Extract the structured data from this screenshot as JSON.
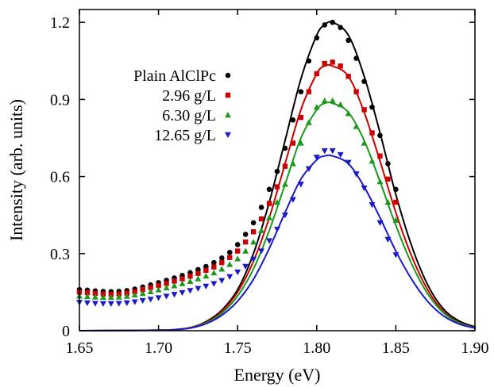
{
  "chart_data": {
    "type": "scatter",
    "title": "",
    "xlabel": "Energy (eV)",
    "ylabel": "Intensity (arb. units)",
    "xlim": [
      1.65,
      1.9
    ],
    "ylim": [
      0,
      1.25
    ],
    "x_ticks": [
      1.65,
      1.7,
      1.75,
      1.8,
      1.85,
      1.9
    ],
    "x_tick_labels": [
      "1.65",
      "1.70",
      "1.75",
      "1.80",
      "1.85",
      "1.90"
    ],
    "y_ticks": [
      0,
      0.3,
      0.6,
      0.9,
      1.2
    ],
    "y_tick_labels": [
      "0",
      "0.3",
      "0.6",
      "0.9",
      "1.2"
    ],
    "grid": false,
    "legend_position": "upper-left",
    "series": [
      {
        "name": "Plain AlClPc",
        "marker": "circle",
        "color": "#000000",
        "points": [
          [
            1.65,
            0.16
          ],
          [
            1.655,
            0.158
          ],
          [
            1.66,
            0.155
          ],
          [
            1.665,
            0.153
          ],
          [
            1.67,
            0.152
          ],
          [
            1.675,
            0.153
          ],
          [
            1.68,
            0.156
          ],
          [
            1.685,
            0.162
          ],
          [
            1.69,
            0.17
          ],
          [
            1.695,
            0.178
          ],
          [
            1.7,
            0.187
          ],
          [
            1.705,
            0.196
          ],
          [
            1.71,
            0.205
          ],
          [
            1.715,
            0.215
          ],
          [
            1.72,
            0.226
          ],
          [
            1.725,
            0.238
          ],
          [
            1.73,
            0.25
          ],
          [
            1.735,
            0.265
          ],
          [
            1.74,
            0.283
          ],
          [
            1.745,
            0.305
          ],
          [
            1.75,
            0.335
          ],
          [
            1.755,
            0.375
          ],
          [
            1.76,
            0.42
          ],
          [
            1.765,
            0.48
          ],
          [
            1.77,
            0.55
          ],
          [
            1.775,
            0.62
          ],
          [
            1.78,
            0.71
          ],
          [
            1.785,
            0.82
          ],
          [
            1.79,
            0.93
          ],
          [
            1.795,
            1.05
          ],
          [
            1.8,
            1.14
          ],
          [
            1.805,
            1.19
          ],
          [
            1.81,
            1.2
          ],
          [
            1.815,
            1.18
          ],
          [
            1.82,
            1.13
          ],
          [
            1.825,
            1.06
          ],
          [
            1.83,
            0.97
          ],
          [
            1.835,
            0.87
          ],
          [
            1.84,
            0.76
          ],
          [
            1.845,
            0.65
          ],
          [
            1.85,
            0.55
          ]
        ],
        "fit": [
          [
            1.65,
            0.0
          ],
          [
            1.7,
            0.002
          ],
          [
            1.71,
            0.004
          ],
          [
            1.72,
            0.012
          ],
          [
            1.73,
            0.035
          ],
          [
            1.74,
            0.08
          ],
          [
            1.75,
            0.16
          ],
          [
            1.76,
            0.3
          ],
          [
            1.77,
            0.5
          ],
          [
            1.78,
            0.74
          ],
          [
            1.79,
            0.98
          ],
          [
            1.8,
            1.15
          ],
          [
            1.805,
            1.19
          ],
          [
            1.81,
            1.2
          ],
          [
            1.82,
            1.15
          ],
          [
            1.83,
            0.99
          ],
          [
            1.84,
            0.77
          ],
          [
            1.85,
            0.53
          ],
          [
            1.86,
            0.33
          ],
          [
            1.87,
            0.18
          ],
          [
            1.88,
            0.085
          ],
          [
            1.89,
            0.038
          ],
          [
            1.9,
            0.015
          ]
        ]
      },
      {
        "name": "2.96 g/L",
        "marker": "square",
        "color": "#cc0000",
        "points": [
          [
            1.65,
            0.15
          ],
          [
            1.655,
            0.148
          ],
          [
            1.66,
            0.145
          ],
          [
            1.665,
            0.143
          ],
          [
            1.67,
            0.142
          ],
          [
            1.675,
            0.143
          ],
          [
            1.68,
            0.146
          ],
          [
            1.685,
            0.152
          ],
          [
            1.69,
            0.16
          ],
          [
            1.695,
            0.168
          ],
          [
            1.7,
            0.176
          ],
          [
            1.705,
            0.184
          ],
          [
            1.71,
            0.193
          ],
          [
            1.715,
            0.202
          ],
          [
            1.72,
            0.212
          ],
          [
            1.725,
            0.223
          ],
          [
            1.73,
            0.235
          ],
          [
            1.735,
            0.248
          ],
          [
            1.74,
            0.265
          ],
          [
            1.745,
            0.285
          ],
          [
            1.75,
            0.31
          ],
          [
            1.755,
            0.345
          ],
          [
            1.76,
            0.385
          ],
          [
            1.765,
            0.435
          ],
          [
            1.77,
            0.495
          ],
          [
            1.775,
            0.56
          ],
          [
            1.78,
            0.64
          ],
          [
            1.785,
            0.73
          ],
          [
            1.79,
            0.83
          ],
          [
            1.795,
            0.93
          ],
          [
            1.8,
            1.0
          ],
          [
            1.805,
            1.04
          ],
          [
            1.81,
            1.045
          ],
          [
            1.815,
            1.03
          ],
          [
            1.82,
            0.99
          ],
          [
            1.825,
            0.93
          ],
          [
            1.83,
            0.86
          ],
          [
            1.835,
            0.77
          ],
          [
            1.84,
            0.68
          ],
          [
            1.845,
            0.59
          ],
          [
            1.85,
            0.5
          ]
        ],
        "fit": [
          [
            1.65,
            0.0
          ],
          [
            1.7,
            0.002
          ],
          [
            1.71,
            0.004
          ],
          [
            1.72,
            0.012
          ],
          [
            1.73,
            0.032
          ],
          [
            1.74,
            0.075
          ],
          [
            1.75,
            0.15
          ],
          [
            1.76,
            0.27
          ],
          [
            1.77,
            0.44
          ],
          [
            1.78,
            0.65
          ],
          [
            1.79,
            0.86
          ],
          [
            1.8,
            1.0
          ],
          [
            1.805,
            1.03
          ],
          [
            1.81,
            1.03
          ],
          [
            1.82,
            0.99
          ],
          [
            1.83,
            0.85
          ],
          [
            1.84,
            0.66
          ],
          [
            1.85,
            0.46
          ],
          [
            1.86,
            0.29
          ],
          [
            1.87,
            0.16
          ],
          [
            1.88,
            0.075
          ],
          [
            1.89,
            0.032
          ],
          [
            1.9,
            0.012
          ]
        ]
      },
      {
        "name": "6.30 g/L",
        "marker": "triangle-up",
        "color": "#1a9a1a",
        "points": [
          [
            1.65,
            0.135
          ],
          [
            1.655,
            0.133
          ],
          [
            1.66,
            0.131
          ],
          [
            1.665,
            0.13
          ],
          [
            1.67,
            0.13
          ],
          [
            1.675,
            0.131
          ],
          [
            1.68,
            0.134
          ],
          [
            1.685,
            0.139
          ],
          [
            1.69,
            0.145
          ],
          [
            1.695,
            0.152
          ],
          [
            1.7,
            0.159
          ],
          [
            1.705,
            0.167
          ],
          [
            1.71,
            0.175
          ],
          [
            1.715,
            0.183
          ],
          [
            1.72,
            0.192
          ],
          [
            1.725,
            0.202
          ],
          [
            1.73,
            0.213
          ],
          [
            1.735,
            0.225
          ],
          [
            1.74,
            0.24
          ],
          [
            1.745,
            0.258
          ],
          [
            1.75,
            0.28
          ],
          [
            1.755,
            0.31
          ],
          [
            1.76,
            0.345
          ],
          [
            1.765,
            0.39
          ],
          [
            1.77,
            0.44
          ],
          [
            1.775,
            0.5
          ],
          [
            1.78,
            0.57
          ],
          [
            1.785,
            0.65
          ],
          [
            1.79,
            0.73
          ],
          [
            1.795,
            0.81
          ],
          [
            1.8,
            0.87
          ],
          [
            1.805,
            0.895
          ],
          [
            1.81,
            0.895
          ],
          [
            1.815,
            0.88
          ],
          [
            1.82,
            0.845
          ],
          [
            1.825,
            0.795
          ],
          [
            1.83,
            0.73
          ],
          [
            1.835,
            0.66
          ],
          [
            1.84,
            0.58
          ],
          [
            1.845,
            0.5
          ],
          [
            1.85,
            0.43
          ]
        ],
        "fit": [
          [
            1.65,
            0.0
          ],
          [
            1.7,
            0.002
          ],
          [
            1.71,
            0.004
          ],
          [
            1.72,
            0.011
          ],
          [
            1.73,
            0.03
          ],
          [
            1.74,
            0.068
          ],
          [
            1.75,
            0.135
          ],
          [
            1.76,
            0.24
          ],
          [
            1.77,
            0.39
          ],
          [
            1.78,
            0.57
          ],
          [
            1.79,
            0.75
          ],
          [
            1.8,
            0.86
          ],
          [
            1.805,
            0.885
          ],
          [
            1.81,
            0.885
          ],
          [
            1.82,
            0.85
          ],
          [
            1.83,
            0.74
          ],
          [
            1.84,
            0.58
          ],
          [
            1.85,
            0.41
          ],
          [
            1.86,
            0.26
          ],
          [
            1.87,
            0.145
          ],
          [
            1.88,
            0.07
          ],
          [
            1.89,
            0.03
          ],
          [
            1.9,
            0.012
          ]
        ]
      },
      {
        "name": "12.65 g/L",
        "marker": "triangle-down",
        "color": "#1a1acc",
        "points": [
          [
            1.65,
            0.11
          ],
          [
            1.655,
            0.108
          ],
          [
            1.66,
            0.106
          ],
          [
            1.665,
            0.105
          ],
          [
            1.67,
            0.105
          ],
          [
            1.675,
            0.106
          ],
          [
            1.68,
            0.108
          ],
          [
            1.685,
            0.112
          ],
          [
            1.69,
            0.117
          ],
          [
            1.695,
            0.122
          ],
          [
            1.7,
            0.128
          ],
          [
            1.705,
            0.134
          ],
          [
            1.71,
            0.141
          ],
          [
            1.715,
            0.148
          ],
          [
            1.72,
            0.156
          ],
          [
            1.725,
            0.164
          ],
          [
            1.73,
            0.173
          ],
          [
            1.735,
            0.183
          ],
          [
            1.74,
            0.195
          ],
          [
            1.745,
            0.21
          ],
          [
            1.75,
            0.228
          ],
          [
            1.755,
            0.25
          ],
          [
            1.76,
            0.278
          ],
          [
            1.765,
            0.31
          ],
          [
            1.77,
            0.35
          ],
          [
            1.775,
            0.395
          ],
          [
            1.78,
            0.45
          ],
          [
            1.785,
            0.51
          ],
          [
            1.79,
            0.57
          ],
          [
            1.795,
            0.63
          ],
          [
            1.8,
            0.675
          ],
          [
            1.805,
            0.7
          ],
          [
            1.81,
            0.7
          ],
          [
            1.815,
            0.685
          ],
          [
            1.82,
            0.655
          ],
          [
            1.825,
            0.61
          ],
          [
            1.83,
            0.555
          ],
          [
            1.835,
            0.49
          ],
          [
            1.84,
            0.42
          ],
          [
            1.845,
            0.355
          ],
          [
            1.85,
            0.295
          ]
        ],
        "fit": [
          [
            1.65,
            0.0
          ],
          [
            1.7,
            0.002
          ],
          [
            1.71,
            0.004
          ],
          [
            1.72,
            0.01
          ],
          [
            1.73,
            0.027
          ],
          [
            1.74,
            0.06
          ],
          [
            1.75,
            0.115
          ],
          [
            1.76,
            0.2
          ],
          [
            1.77,
            0.32
          ],
          [
            1.78,
            0.46
          ],
          [
            1.79,
            0.59
          ],
          [
            1.8,
            0.665
          ],
          [
            1.805,
            0.68
          ],
          [
            1.81,
            0.68
          ],
          [
            1.82,
            0.65
          ],
          [
            1.83,
            0.56
          ],
          [
            1.84,
            0.44
          ],
          [
            1.85,
            0.31
          ],
          [
            1.86,
            0.2
          ],
          [
            1.87,
            0.115
          ],
          [
            1.88,
            0.058
          ],
          [
            1.89,
            0.026
          ],
          [
            1.9,
            0.01
          ]
        ]
      }
    ]
  }
}
